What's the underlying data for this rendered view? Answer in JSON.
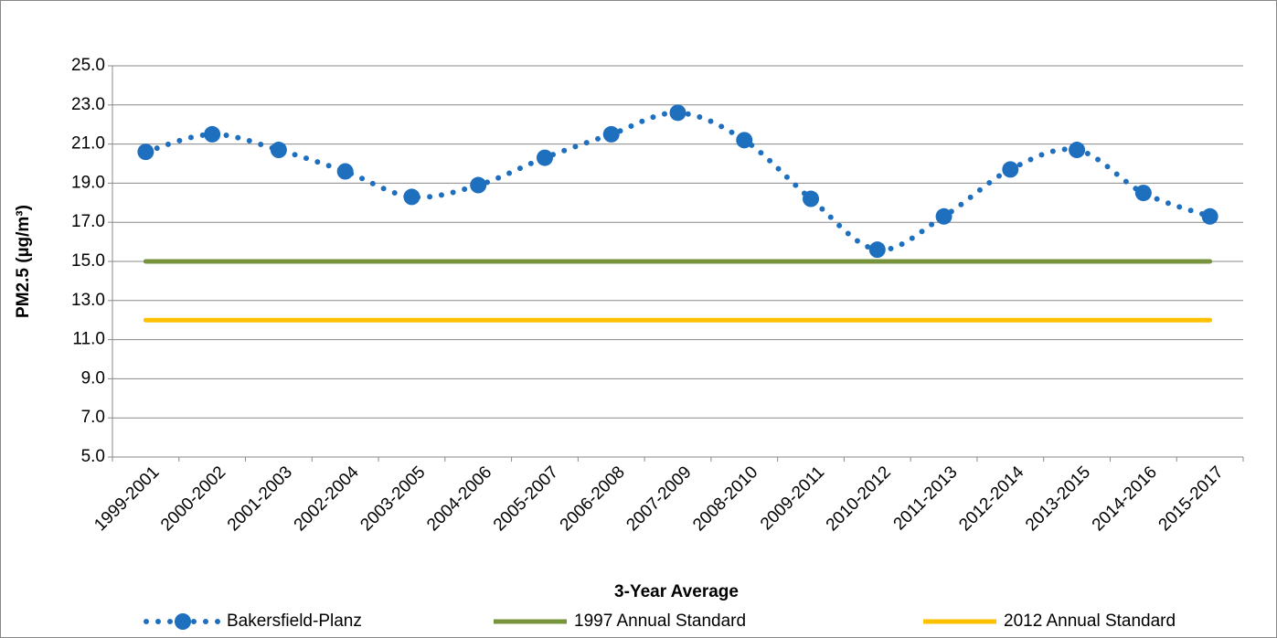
{
  "chart_data": {
    "type": "line",
    "xlabel": "3-Year Average",
    "ylabel": "PM2.5 (µg/m³)",
    "categories": [
      "1999-2001",
      "2000-2002",
      "2001-2003",
      "2002-2004",
      "2003-2005",
      "2004-2006",
      "2005-2007",
      "2006-2008",
      "2007-2009",
      "2008-2010",
      "2009-2011",
      "2010-2012",
      "2011-2013",
      "2012-2014",
      "2013-2015",
      "2014-2016",
      "2015-2017"
    ],
    "series": [
      {
        "name": "Bakersfield-Planz",
        "color": "#1f6fbf",
        "style": "dotted-markers",
        "values": [
          20.6,
          21.5,
          20.7,
          19.6,
          18.3,
          18.9,
          20.3,
          21.5,
          22.6,
          21.2,
          18.2,
          15.6,
          17.3,
          19.7,
          20.7,
          18.5,
          17.3
        ]
      },
      {
        "name": "1997 Annual Standard",
        "color": "#77933c",
        "style": "solid",
        "values": [
          15,
          15,
          15,
          15,
          15,
          15,
          15,
          15,
          15,
          15,
          15,
          15,
          15,
          15,
          15,
          15,
          15
        ]
      },
      {
        "name": "2012 Annual Standard",
        "color": "#ffc000",
        "style": "solid",
        "values": [
          12,
          12,
          12,
          12,
          12,
          12,
          12,
          12,
          12,
          12,
          12,
          12,
          12,
          12,
          12,
          12,
          12
        ]
      }
    ],
    "ylim": [
      5,
      25
    ],
    "yticks": [
      {
        "value": 5,
        "label": "5.0"
      },
      {
        "value": 7,
        "label": "7.0"
      },
      {
        "value": 9,
        "label": "9.0"
      },
      {
        "value": 11,
        "label": "11.0"
      },
      {
        "value": 13,
        "label": "13.0"
      },
      {
        "value": 15,
        "label": "15.0"
      },
      {
        "value": 17,
        "label": "17.0"
      },
      {
        "value": 19,
        "label": "19.0"
      },
      {
        "value": 21,
        "label": "21.0"
      },
      {
        "value": 23,
        "label": "23.0"
      },
      {
        "value": 25,
        "label": "25.0"
      }
    ],
    "grid": true,
    "legend": "bottom"
  }
}
